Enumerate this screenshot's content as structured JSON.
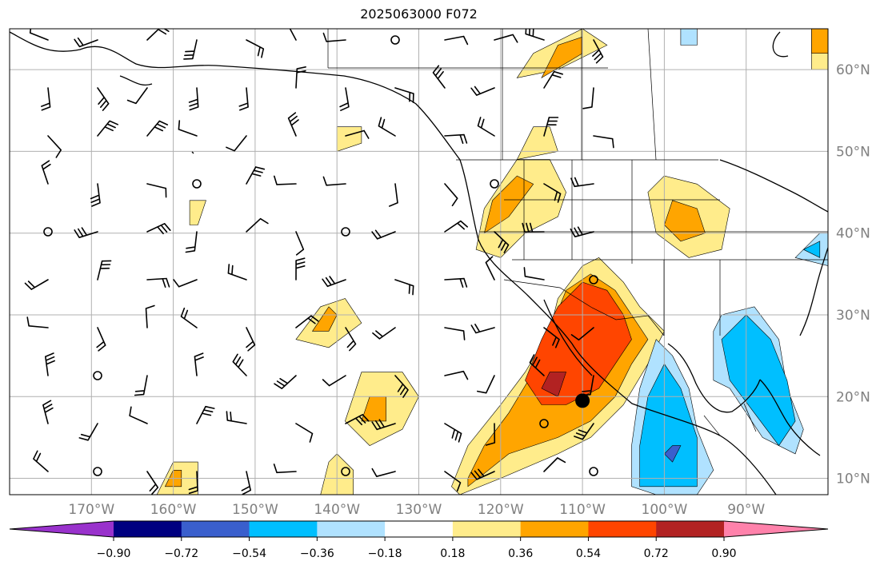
{
  "title": "2025063000 F072",
  "map": {
    "lon_range": [
      -180,
      -80
    ],
    "lat_range": [
      8,
      65
    ],
    "lon_labels": [
      "170°W",
      "160°W",
      "150°W",
      "140°W",
      "130°W",
      "120°W",
      "110°W",
      "100°W",
      "90°W"
    ],
    "lat_labels": [
      "60°N",
      "50°N",
      "40°N",
      "30°N",
      "20°N",
      "10°N"
    ],
    "marker": {
      "lon": -110,
      "lat": 19.5,
      "color": "#000000"
    }
  },
  "colorbar": {
    "colors": [
      "#9932cc",
      "#000080",
      "#3a5fcd",
      "#00bfff",
      "#b0e2ff",
      "#ffffff",
      "#ffec8b",
      "#ffa500",
      "#ff4500",
      "#b22222",
      "#ff82ab"
    ],
    "tick_labels": [
      "−0.90",
      "−0.72",
      "−0.54",
      "−0.36",
      "−0.18",
      "0.18",
      "0.36",
      "0.54",
      "0.72",
      "0.90"
    ]
  },
  "fields": [
    {
      "color": "#ffec8b",
      "polys": [
        [
          [
            -126,
            9
          ],
          [
            -124,
            14
          ],
          [
            -120,
            19
          ],
          [
            -117,
            23
          ],
          [
            -114,
            28
          ],
          [
            -113,
            32
          ],
          [
            -110,
            36
          ],
          [
            -108,
            37
          ],
          [
            -105,
            34
          ],
          [
            -103,
            31
          ],
          [
            -100,
            28
          ],
          [
            -102,
            24
          ],
          [
            -105,
            19
          ],
          [
            -109,
            15
          ],
          [
            -113,
            13
          ],
          [
            -120,
            10
          ],
          [
            -125,
            8
          ]
        ],
        [
          [
            -142,
            8
          ],
          [
            -141,
            12
          ],
          [
            -140,
            13
          ],
          [
            -138,
            11
          ],
          [
            -138,
            8
          ]
        ],
        [
          [
            -139,
            17
          ],
          [
            -137,
            23
          ],
          [
            -132,
            23
          ],
          [
            -130,
            20
          ],
          [
            -132,
            16
          ],
          [
            -136,
            14
          ]
        ],
        [
          [
            -145,
            27
          ],
          [
            -142,
            31
          ],
          [
            -139,
            32
          ],
          [
            -137,
            29
          ],
          [
            -141,
            26
          ]
        ],
        [
          [
            -162,
            8
          ],
          [
            -160,
            12
          ],
          [
            -157,
            12
          ],
          [
            -157,
            8
          ]
        ],
        [
          [
            -123,
            38
          ],
          [
            -122,
            43
          ],
          [
            -118,
            49
          ],
          [
            -114,
            49
          ],
          [
            -112,
            45
          ],
          [
            -113,
            42
          ],
          [
            -117,
            40
          ],
          [
            -120,
            37
          ]
        ],
        [
          [
            -102,
            45
          ],
          [
            -100,
            47
          ],
          [
            -96,
            46
          ],
          [
            -92,
            43
          ],
          [
            -93,
            38
          ],
          [
            -97,
            37
          ],
          [
            -101,
            40
          ]
        ],
        [
          [
            -118,
            49
          ],
          [
            -116,
            53
          ],
          [
            -114,
            53
          ],
          [
            -113,
            50
          ]
        ],
        [
          [
            -140,
            50
          ],
          [
            -140,
            53
          ],
          [
            -137,
            53
          ],
          [
            -137,
            51
          ]
        ],
        [
          [
            -158,
            41
          ],
          [
            -158,
            44
          ],
          [
            -156,
            44
          ],
          [
            -157,
            41
          ]
        ],
        [
          [
            -118,
            59
          ],
          [
            -116,
            62
          ],
          [
            -110,
            65
          ],
          [
            -107,
            63
          ],
          [
            -113,
            60
          ]
        ],
        [
          [
            -82,
            60
          ],
          [
            -82,
            65
          ],
          [
            -80,
            65
          ],
          [
            -80,
            60
          ]
        ]
      ]
    },
    {
      "color": "#ffa500",
      "polys": [
        [
          [
            -124,
            10
          ],
          [
            -122,
            14
          ],
          [
            -119,
            18
          ],
          [
            -116,
            23
          ],
          [
            -114,
            28
          ],
          [
            -112,
            33
          ],
          [
            -109,
            35
          ],
          [
            -106,
            33
          ],
          [
            -104,
            30
          ],
          [
            -102,
            27
          ],
          [
            -104,
            24
          ],
          [
            -106,
            20
          ],
          [
            -109,
            17
          ],
          [
            -113,
            15
          ],
          [
            -119,
            13
          ],
          [
            -124,
            9
          ]
        ],
        [
          [
            -137,
            17
          ],
          [
            -136,
            20
          ],
          [
            -134,
            20
          ],
          [
            -134,
            17
          ]
        ],
        [
          [
            -143,
            28
          ],
          [
            -141,
            31
          ],
          [
            -140,
            30
          ],
          [
            -141,
            28
          ]
        ],
        [
          [
            -161,
            9
          ],
          [
            -160,
            11
          ],
          [
            -159,
            11
          ],
          [
            -159,
            9
          ]
        ],
        [
          [
            -122,
            40
          ],
          [
            -121,
            44
          ],
          [
            -118,
            47
          ],
          [
            -116,
            46
          ],
          [
            -119,
            42
          ]
        ],
        [
          [
            -100,
            41
          ],
          [
            -99,
            44
          ],
          [
            -96,
            43
          ],
          [
            -95,
            40
          ],
          [
            -98,
            39
          ]
        ],
        [
          [
            -115,
            59
          ],
          [
            -113,
            63
          ],
          [
            -110,
            64
          ],
          [
            -110,
            62
          ]
        ],
        [
          [
            -82,
            62
          ],
          [
            -82,
            65
          ],
          [
            -80,
            65
          ],
          [
            -80,
            62
          ]
        ]
      ]
    },
    {
      "color": "#ff4500",
      "polys": [
        [
          [
            -117,
            22
          ],
          [
            -115,
            27
          ],
          [
            -113,
            31
          ],
          [
            -110,
            34
          ],
          [
            -107,
            33
          ],
          [
            -105,
            30
          ],
          [
            -104,
            27
          ],
          [
            -106,
            24
          ],
          [
            -108,
            21
          ],
          [
            -112,
            19
          ],
          [
            -115,
            19
          ]
        ]
      ]
    },
    {
      "color": "#b22222",
      "polys": [
        [
          [
            -115,
            21
          ],
          [
            -114,
            23
          ],
          [
            -112,
            23
          ],
          [
            -113,
            20
          ]
        ]
      ]
    },
    {
      "color": "#b0e2ff",
      "polys": [
        [
          [
            -104,
            9
          ],
          [
            -104,
            14
          ],
          [
            -103,
            21
          ],
          [
            -101,
            27
          ],
          [
            -99,
            25
          ],
          [
            -97,
            21
          ],
          [
            -96,
            16
          ],
          [
            -94,
            11
          ],
          [
            -96,
            8
          ],
          [
            -101,
            8
          ]
        ],
        [
          [
            -94,
            28
          ],
          [
            -94,
            22
          ],
          [
            -92,
            21
          ],
          [
            -88,
            15
          ],
          [
            -84,
            13
          ],
          [
            -83,
            16
          ],
          [
            -85,
            21
          ],
          [
            -86,
            27
          ],
          [
            -89,
            31
          ],
          [
            -93,
            30
          ]
        ],
        [
          [
            -84,
            37
          ],
          [
            -81,
            40
          ],
          [
            -80,
            40
          ],
          [
            -80,
            36
          ]
        ],
        [
          [
            -98,
            63
          ],
          [
            -98,
            65
          ],
          [
            -96,
            65
          ],
          [
            -96,
            63
          ]
        ]
      ]
    },
    {
      "color": "#00bfff",
      "polys": [
        [
          [
            -103,
            9
          ],
          [
            -103,
            14
          ],
          [
            -102,
            20
          ],
          [
            -100,
            24
          ],
          [
            -98,
            21
          ],
          [
            -96,
            15
          ],
          [
            -96,
            9
          ]
        ],
        [
          [
            -93,
            27
          ],
          [
            -92,
            22
          ],
          [
            -89,
            18
          ],
          [
            -86,
            14
          ],
          [
            -84,
            17
          ],
          [
            -85,
            22
          ],
          [
            -87,
            27
          ],
          [
            -90,
            30
          ]
        ],
        [
          [
            -83,
            38
          ],
          [
            -81,
            39
          ],
          [
            -81,
            37
          ]
        ]
      ]
    },
    {
      "color": "#3a5fcd",
      "polys": [
        [
          [
            -100,
            13
          ],
          [
            -99,
            14
          ],
          [
            -98,
            14
          ],
          [
            -99,
            12
          ]
        ]
      ]
    }
  ]
}
